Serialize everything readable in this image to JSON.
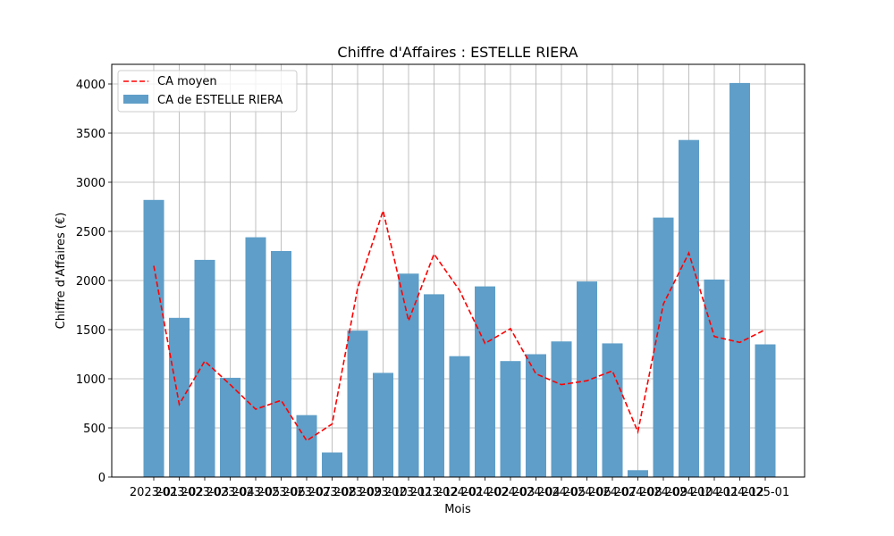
{
  "chart_data": {
    "type": "bar",
    "title": "Chiffre d'Affaires : ESTELLE RIERA",
    "xlabel": "Mois",
    "ylabel": "Chiffre d'Affaires (€)",
    "categories": [
      "2023-01",
      "2023-02",
      "2023-03",
      "2023-04",
      "2023-05",
      "2023-06",
      "2023-07",
      "2023-08",
      "2023-09",
      "2023-10",
      "2023-11",
      "2023-12",
      "2024-01",
      "2024-02",
      "2024-03",
      "2024-04",
      "2024-05",
      "2024-06",
      "2024-07",
      "2024-08",
      "2024-09",
      "2024-10",
      "2024-11",
      "2024-12",
      "2025-01"
    ],
    "ylim": [
      0,
      4200
    ],
    "yticks": [
      0,
      500,
      1000,
      1500,
      2000,
      2500,
      3000,
      3500,
      4000
    ],
    "grid": true,
    "legend_position": "top-left",
    "series": [
      {
        "name": "CA de ESTELLE RIERA",
        "kind": "bar",
        "color": "#5f9ec8",
        "values": [
          2820,
          1620,
          2210,
          1010,
          2440,
          2300,
          630,
          250,
          1490,
          1060,
          2070,
          1860,
          1230,
          1940,
          1180,
          1250,
          1380,
          1990,
          1360,
          70,
          2640,
          3430,
          2010,
          4010,
          1350
        ]
      },
      {
        "name": "CA moyen",
        "kind": "line",
        "style": "dashed",
        "color": "#ff0000",
        "values": [
          2150,
          740,
          1180,
          940,
          690,
          780,
          370,
          540,
          1920,
          2710,
          1590,
          2270,
          1900,
          1360,
          1510,
          1050,
          940,
          980,
          1080,
          460,
          1760,
          2280,
          1430,
          1370,
          1500
        ]
      }
    ]
  }
}
